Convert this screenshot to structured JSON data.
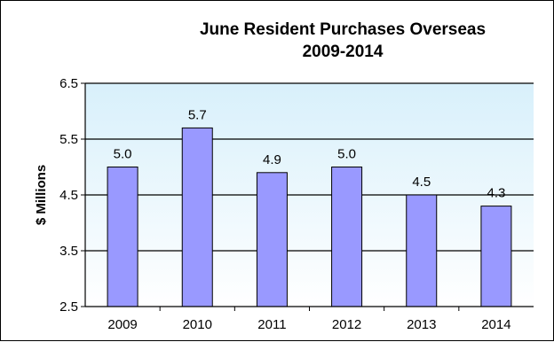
{
  "chart_data": {
    "type": "bar",
    "title_lines": [
      "June Resident  Purchases  Overseas",
      "2009-2014"
    ],
    "categories": [
      "2009",
      "2010",
      "2011",
      "2012",
      "2013",
      "2014"
    ],
    "values": [
      5.0,
      5.7,
      4.9,
      5.0,
      4.5,
      4.3
    ],
    "data_labels": [
      "5.0",
      "5.7",
      "4.9",
      "5.0",
      "4.5",
      "4.3"
    ],
    "xlabel": "",
    "ylabel": "$ Millions",
    "ylim": [
      2.5,
      6.5
    ],
    "yticks": [
      2.5,
      3.5,
      4.5,
      5.5,
      6.5
    ],
    "ytick_labels": [
      "2.5",
      "3.5",
      "4.5",
      "5.5",
      "6.5"
    ],
    "grid": true,
    "legend": "none",
    "colors": {
      "bar_fill": "#9999ff",
      "bar_stroke": "#000000",
      "plot_background_top": "#d8f0fb",
      "plot_background_bottom": "#ffffff",
      "gridline": "#000000",
      "text": "#000000"
    }
  }
}
